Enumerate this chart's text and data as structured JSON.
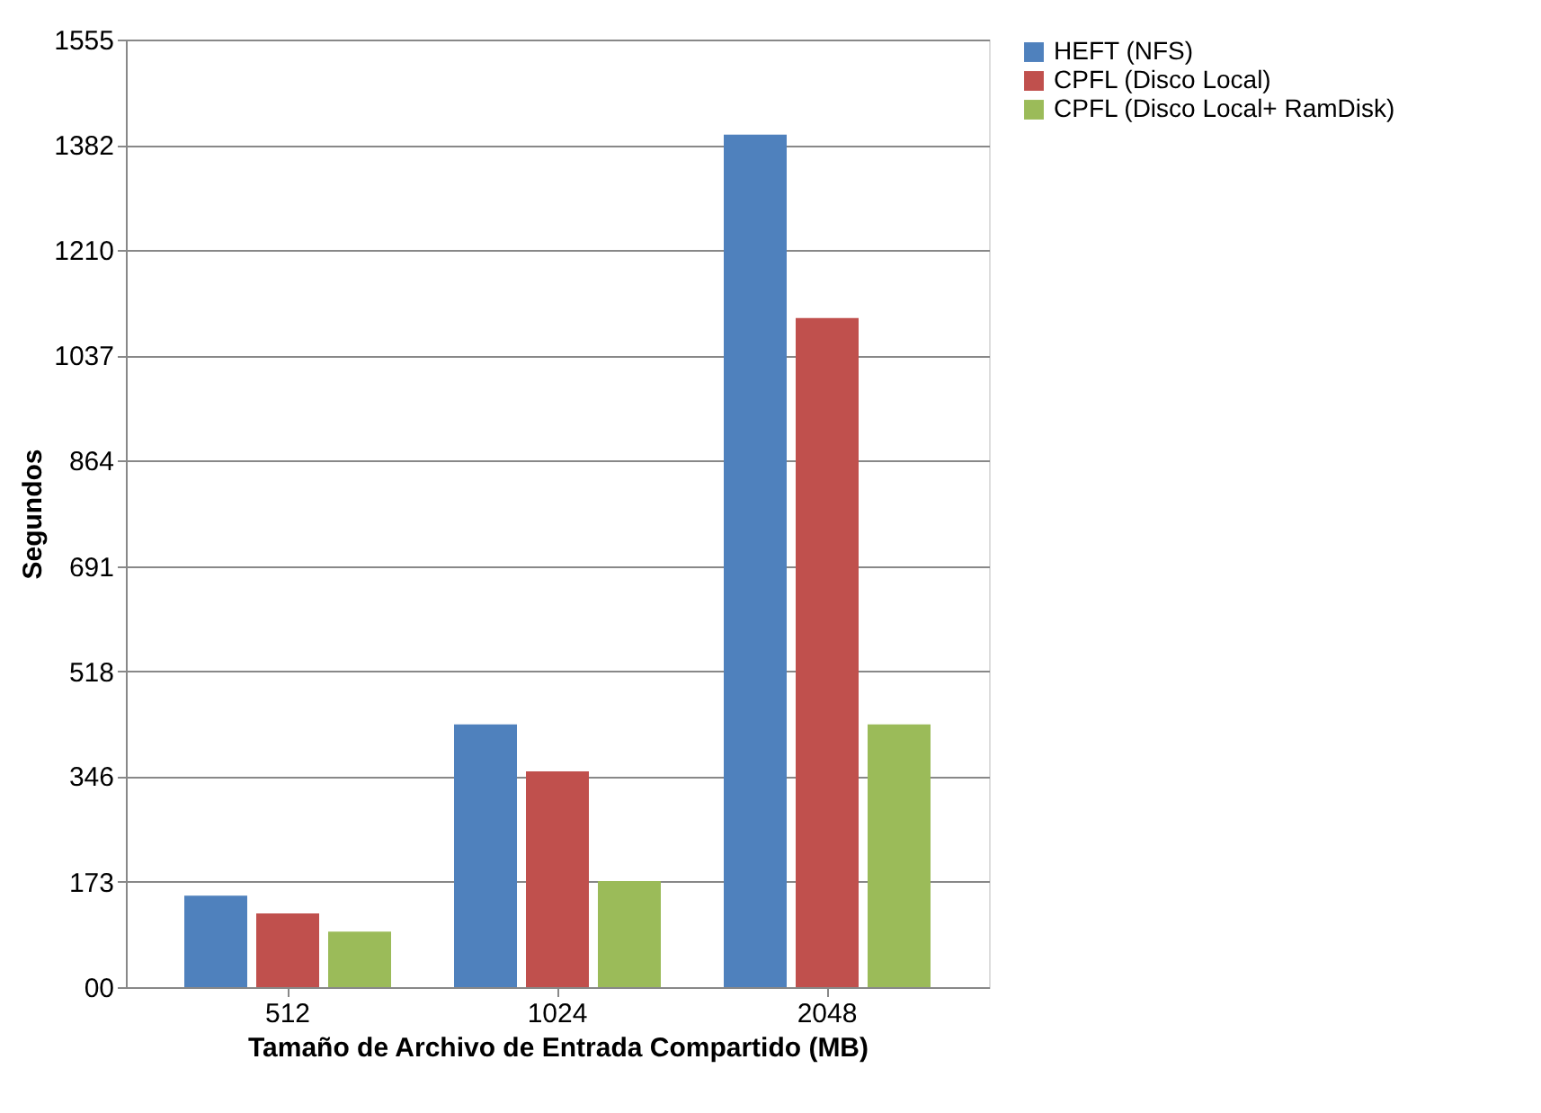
{
  "chart_data": {
    "type": "bar",
    "xlabel": "Tamaño de Archivo de Entrada Compartido (MB)",
    "ylabel": "Segundos",
    "categories": [
      "512",
      "1024",
      "2048"
    ],
    "series": [
      {
        "name": "HEFT (NFS)",
        "color": "#4f81bd",
        "values": [
          150,
          431,
          1399
        ]
      },
      {
        "name": "CPFL (Disco Local)",
        "color": "#c0504d",
        "values": [
          121,
          354,
          1098
        ]
      },
      {
        "name": "CPFL (Disco Local+ RamDisk)",
        "color": "#9bbb59",
        "values": [
          91,
          174,
          431
        ]
      }
    ],
    "ylim": [
      0,
      1555
    ],
    "yticks": [
      {
        "value": 0,
        "label": "00"
      },
      173,
      346,
      518,
      691,
      864,
      1037,
      1210,
      1382,
      1555
    ],
    "grid": "y",
    "legend": "right"
  }
}
